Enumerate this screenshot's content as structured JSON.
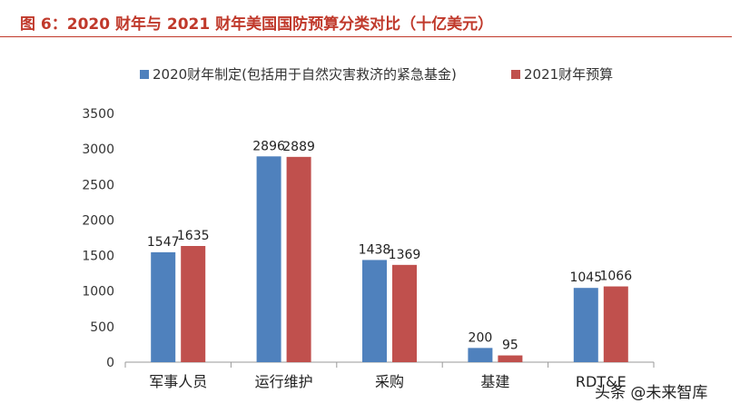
{
  "title": "图 6：2020 财年与 2021 财年美国国防预算分类对比（十亿美元）",
  "watermark": "头条 @未来智库",
  "colors": {
    "series1": "#4f81bd",
    "series2": "#c0504d",
    "title": "#c0392b"
  },
  "chart_data": {
    "type": "bar",
    "title": "",
    "xlabel": "",
    "ylabel": "",
    "ylim": [
      0,
      3500
    ],
    "yticks": [
      0,
      500,
      1000,
      1500,
      2000,
      2500,
      3000,
      3500
    ],
    "grid": false,
    "legend_position": "top",
    "categories": [
      "军事人员",
      "运行维护",
      "采购",
      "基建",
      "RDT&E"
    ],
    "series": [
      {
        "name": "2020财年制定(包括用于自然灾害救济的紧急基金)",
        "values": [
          1547,
          2896,
          1438,
          200,
          1045
        ]
      },
      {
        "name": "2021财年预算",
        "values": [
          1635,
          2889,
          1369,
          95,
          1066
        ]
      }
    ]
  }
}
